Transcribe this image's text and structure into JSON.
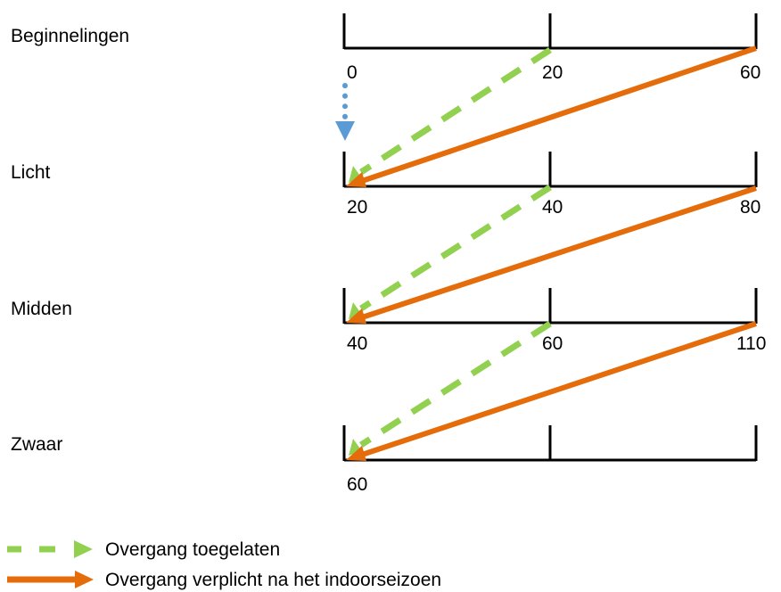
{
  "colors": {
    "allowed": "#92D050",
    "mandatory": "#E46C0A",
    "start": "#5B9BD5",
    "scale": "#000000"
  },
  "levels": [
    {
      "name": "Beginnelingen",
      "ticks": [
        "0",
        "20",
        "60"
      ]
    },
    {
      "name": "Licht",
      "ticks": [
        "20",
        "40",
        "80"
      ]
    },
    {
      "name": "Midden",
      "ticks": [
        "40",
        "60",
        "110"
      ]
    },
    {
      "name": "Zwaar",
      "ticks": [
        "60",
        "",
        ""
      ]
    }
  ],
  "legend": {
    "allowed": {
      "label": "Overgang toegelaten",
      "icon": "dashed-arrow-icon"
    },
    "mandatory": {
      "label": "Overgang verplicht na het indoorseizoen",
      "icon": "solid-arrow-icon"
    }
  }
}
